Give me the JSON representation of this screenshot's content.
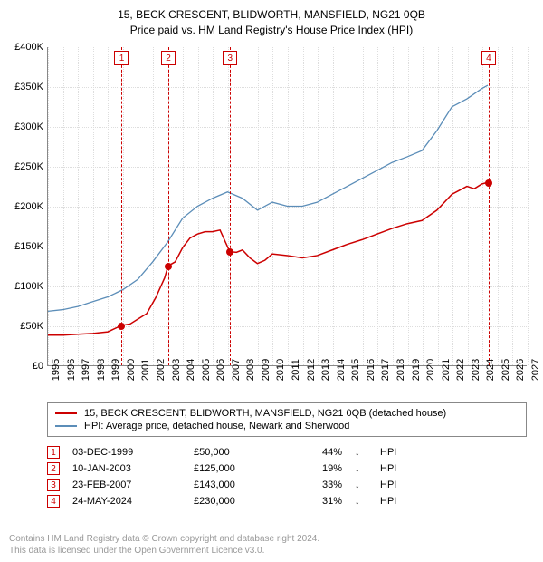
{
  "title_line1": "15, BECK CRESCENT, BLIDWORTH, MANSFIELD, NG21 0QB",
  "title_line2": "Price paid vs. HM Land Registry's House Price Index (HPI)",
  "chart": {
    "type": "line",
    "xlim": [
      1995,
      2027
    ],
    "ylim": [
      0,
      400000
    ],
    "y_ticks": [
      0,
      50000,
      100000,
      150000,
      200000,
      250000,
      300000,
      350000,
      400000
    ],
    "y_tick_labels": [
      "£0",
      "£50K",
      "£100K",
      "£150K",
      "£200K",
      "£250K",
      "£300K",
      "£350K",
      "£400K"
    ],
    "x_ticks": [
      1995,
      1996,
      1997,
      1998,
      1999,
      2000,
      2001,
      2002,
      2003,
      2004,
      2005,
      2006,
      2007,
      2008,
      2009,
      2010,
      2011,
      2012,
      2013,
      2014,
      2015,
      2016,
      2017,
      2018,
      2019,
      2020,
      2021,
      2022,
      2023,
      2024,
      2025,
      2026,
      2027
    ],
    "background_color": "#ffffff",
    "grid_color": "#dddddd",
    "axis_color": "#888888",
    "series": [
      {
        "name": "property",
        "color": "#cc0000",
        "width": 1.5,
        "label": "15, BECK CRESCENT, BLIDWORTH, MANSFIELD, NG21 0QB (detached house)",
        "points": [
          [
            1995.0,
            38000
          ],
          [
            1996.0,
            38000
          ],
          [
            1997.0,
            39000
          ],
          [
            1998.0,
            40000
          ],
          [
            1999.0,
            42000
          ],
          [
            1999.9,
            50000
          ],
          [
            2000.5,
            52000
          ],
          [
            2001.0,
            58000
          ],
          [
            2001.6,
            65000
          ],
          [
            2002.2,
            85000
          ],
          [
            2002.8,
            110000
          ],
          [
            2003.03,
            125000
          ],
          [
            2003.5,
            130000
          ],
          [
            2004.0,
            148000
          ],
          [
            2004.5,
            160000
          ],
          [
            2005.0,
            165000
          ],
          [
            2005.5,
            168000
          ],
          [
            2006.0,
            168000
          ],
          [
            2006.5,
            170000
          ],
          [
            2007.15,
            143000
          ],
          [
            2007.6,
            142000
          ],
          [
            2008.0,
            145000
          ],
          [
            2008.5,
            135000
          ],
          [
            2009.0,
            128000
          ],
          [
            2009.5,
            132000
          ],
          [
            2010.0,
            140000
          ],
          [
            2011.0,
            138000
          ],
          [
            2012.0,
            135000
          ],
          [
            2013.0,
            138000
          ],
          [
            2014.0,
            145000
          ],
          [
            2015.0,
            152000
          ],
          [
            2016.0,
            158000
          ],
          [
            2017.0,
            165000
          ],
          [
            2018.0,
            172000
          ],
          [
            2019.0,
            178000
          ],
          [
            2020.0,
            182000
          ],
          [
            2021.0,
            195000
          ],
          [
            2022.0,
            215000
          ],
          [
            2023.0,
            225000
          ],
          [
            2023.5,
            222000
          ],
          [
            2024.0,
            228000
          ],
          [
            2024.4,
            230000
          ]
        ]
      },
      {
        "name": "hpi",
        "color": "#5b8db8",
        "width": 1.3,
        "label": "HPI: Average price, detached house, Newark and Sherwood",
        "points": [
          [
            1995.0,
            68000
          ],
          [
            1996.0,
            70000
          ],
          [
            1997.0,
            74000
          ],
          [
            1998.0,
            80000
          ],
          [
            1999.0,
            86000
          ],
          [
            2000.0,
            95000
          ],
          [
            2001.0,
            108000
          ],
          [
            2002.0,
            130000
          ],
          [
            2003.0,
            155000
          ],
          [
            2004.0,
            185000
          ],
          [
            2005.0,
            200000
          ],
          [
            2006.0,
            210000
          ],
          [
            2007.0,
            218000
          ],
          [
            2008.0,
            210000
          ],
          [
            2009.0,
            195000
          ],
          [
            2010.0,
            205000
          ],
          [
            2011.0,
            200000
          ],
          [
            2012.0,
            200000
          ],
          [
            2013.0,
            205000
          ],
          [
            2014.0,
            215000
          ],
          [
            2015.0,
            225000
          ],
          [
            2016.0,
            235000
          ],
          [
            2017.0,
            245000
          ],
          [
            2018.0,
            255000
          ],
          [
            2019.0,
            262000
          ],
          [
            2020.0,
            270000
          ],
          [
            2021.0,
            295000
          ],
          [
            2022.0,
            325000
          ],
          [
            2023.0,
            335000
          ],
          [
            2024.0,
            348000
          ],
          [
            2024.4,
            352000
          ]
        ]
      }
    ],
    "events": [
      {
        "num": "1",
        "x": 1999.92
      },
      {
        "num": "2",
        "x": 2003.03
      },
      {
        "num": "3",
        "x": 2007.15
      },
      {
        "num": "4",
        "x": 2024.4
      }
    ],
    "markers": [
      {
        "x": 1999.92,
        "y": 50000,
        "color": "#cc0000"
      },
      {
        "x": 2003.03,
        "y": 125000,
        "color": "#cc0000"
      },
      {
        "x": 2007.15,
        "y": 143000,
        "color": "#cc0000"
      },
      {
        "x": 2024.4,
        "y": 230000,
        "color": "#cc0000"
      }
    ]
  },
  "sales": [
    {
      "num": "1",
      "date": "03-DEC-1999",
      "price": "£50,000",
      "pct": "44%",
      "arrow": "↓",
      "hpi": "HPI"
    },
    {
      "num": "2",
      "date": "10-JAN-2003",
      "price": "£125,000",
      "pct": "19%",
      "arrow": "↓",
      "hpi": "HPI"
    },
    {
      "num": "3",
      "date": "23-FEB-2007",
      "price": "£143,000",
      "pct": "33%",
      "arrow": "↓",
      "hpi": "HPI"
    },
    {
      "num": "4",
      "date": "24-MAY-2024",
      "price": "£230,000",
      "pct": "31%",
      "arrow": "↓",
      "hpi": "HPI"
    }
  ],
  "footer_line1": "Contains HM Land Registry data © Crown copyright and database right 2024.",
  "footer_line2": "This data is licensed under the Open Government Licence v3.0."
}
